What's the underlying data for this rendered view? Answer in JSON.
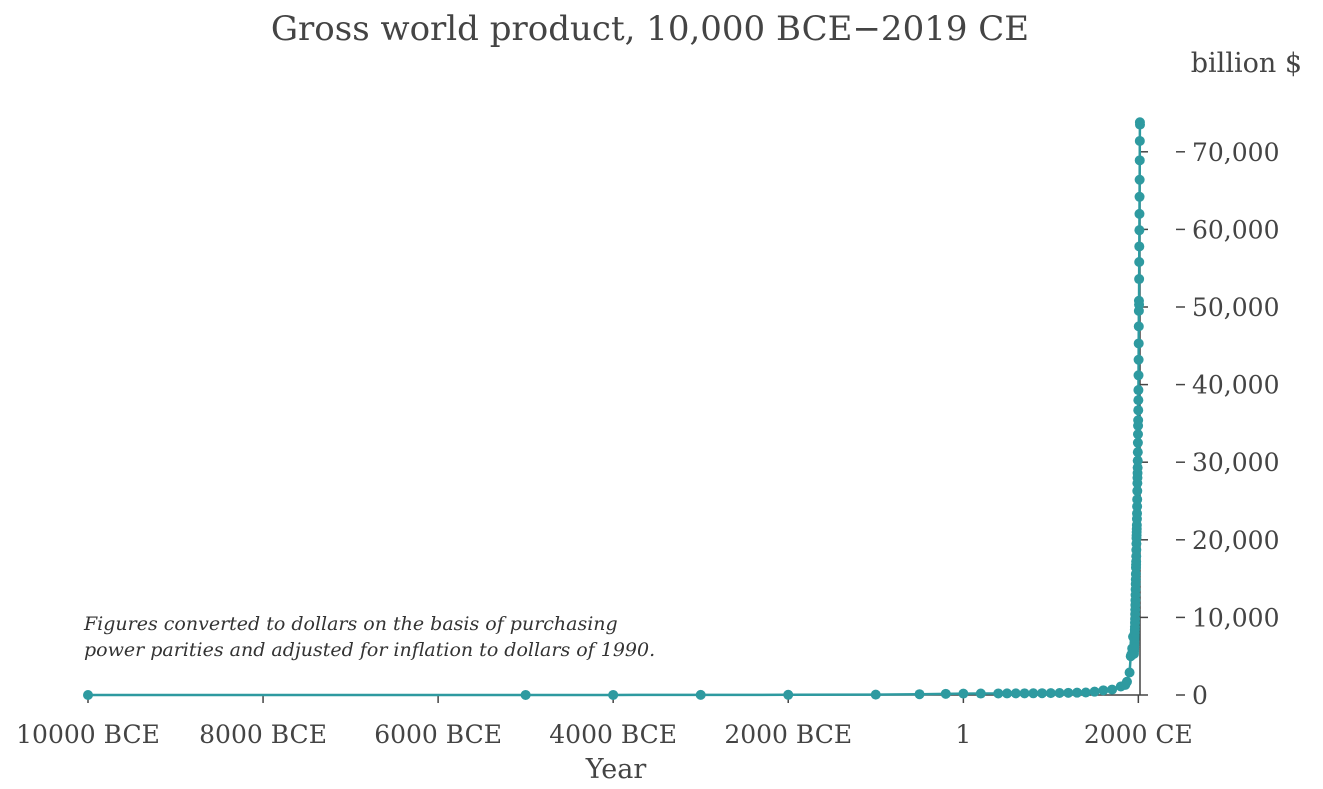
{
  "chart_data": {
    "type": "line",
    "title": "Gross world product, 10,000 BCE−2019 CE",
    "unit_label": "billion $",
    "xlabel": "Year",
    "ylabel": "",
    "xlim": [
      -10000,
      2019
    ],
    "ylim": [
      0,
      75000
    ],
    "grid": false,
    "marker": "circle",
    "color": "#2e9aa0",
    "x_ticks": [
      {
        "value": -10000,
        "label": "10000 BCE"
      },
      {
        "value": -8000,
        "label": "8000 BCE"
      },
      {
        "value": -6000,
        "label": "6000 BCE"
      },
      {
        "value": -4000,
        "label": "4000 BCE"
      },
      {
        "value": -2000,
        "label": "2000 BCE"
      },
      {
        "value": 1,
        "label": "1"
      },
      {
        "value": 2000,
        "label": "2000 CE"
      }
    ],
    "y_ticks": [
      {
        "value": 0,
        "label": "0"
      },
      {
        "value": 10000,
        "label": "10,000"
      },
      {
        "value": 20000,
        "label": "20,000"
      },
      {
        "value": 30000,
        "label": "30,000"
      },
      {
        "value": 40000,
        "label": "40,000"
      },
      {
        "value": 50000,
        "label": "50,000"
      },
      {
        "value": 60000,
        "label": "60,000"
      },
      {
        "value": 70000,
        "label": "70,000"
      }
    ],
    "annotation": [
      "Figures converted to dollars on the basis of purchasing",
      "power parities and adjusted for inflation to dollars of 1990."
    ],
    "x": [
      -10000,
      -5000,
      -4000,
      -3000,
      -2000,
      -1000,
      -500,
      -200,
      1,
      200,
      400,
      500,
      600,
      700,
      800,
      900,
      1000,
      1100,
      1200,
      1300,
      1400,
      1500,
      1600,
      1700,
      1800,
      1850,
      1870,
      1900,
      1913,
      1920,
      1930,
      1940,
      1950,
      1951,
      1952,
      1953,
      1954,
      1955,
      1956,
      1957,
      1958,
      1959,
      1960,
      1961,
      1962,
      1963,
      1964,
      1965,
      1966,
      1967,
      1968,
      1969,
      1970,
      1971,
      1972,
      1973,
      1974,
      1975,
      1976,
      1977,
      1978,
      1979,
      1980,
      1981,
      1982,
      1983,
      1984,
      1985,
      1986,
      1987,
      1988,
      1989,
      1990,
      1991,
      1992,
      1993,
      1994,
      1995,
      1996,
      1997,
      1998,
      1999,
      2000,
      2001,
      2002,
      2003,
      2004,
      2005,
      2006,
      2007,
      2008,
      2009,
      2010,
      2011,
      2012,
      2013,
      2014,
      2015,
      2016,
      2017,
      2018,
      2019
    ],
    "values": [
      1.5,
      5,
      7,
      14,
      27,
      50,
      100,
      150,
      180,
      190,
      200,
      205,
      210,
      215,
      220,
      230,
      240,
      260,
      280,
      300,
      320,
      430,
      600,
      700,
      1100,
      1300,
      1700,
      2900,
      5000,
      5200,
      6000,
      7500,
      5300,
      5600,
      5900,
      6100,
      6400,
      6700,
      7100,
      7400,
      7600,
      8000,
      8400,
      8800,
      9300,
      9800,
      10400,
      11000,
      11600,
      12200,
      12900,
      13600,
      14300,
      14900,
      15600,
      16400,
      16800,
      17200,
      17900,
      18700,
      19500,
      20200,
      20600,
      21000,
      21400,
      21900,
      22700,
      23400,
      24300,
      25200,
      26300,
      27300,
      28000,
      28600,
      29300,
      30200,
      31300,
      32500,
      33600,
      34700,
      35400,
      36700,
      38000,
      39300,
      41200,
      43200,
      45300,
      47500,
      49500,
      50800,
      50300,
      53600,
      55800,
      57800,
      59900,
      62000,
      64200,
      66400,
      68900,
      71400,
      73800,
      73500
    ]
  }
}
